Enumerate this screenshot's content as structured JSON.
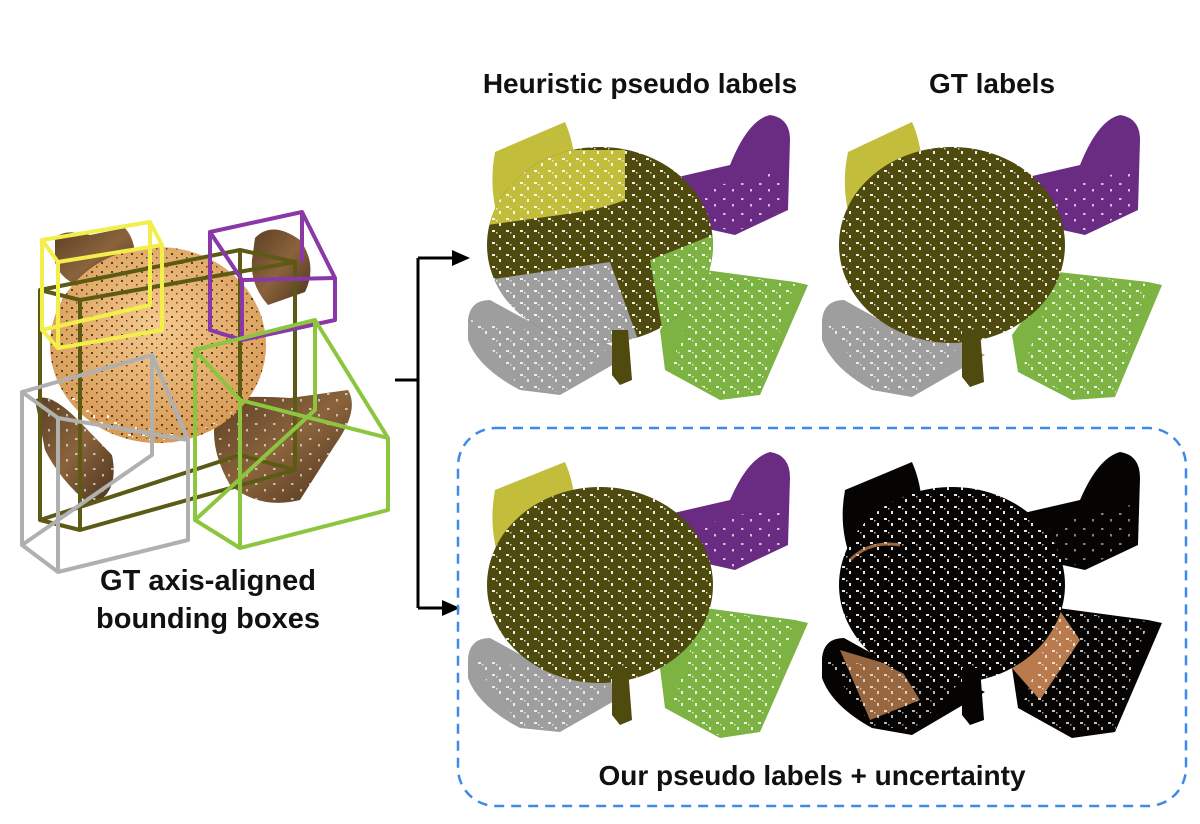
{
  "labels": {
    "gt_boxes_line1": "GT axis-aligned",
    "gt_boxes_line2": "bounding boxes",
    "heuristic": "Heuristic pseudo labels",
    "gt_labels": "GT labels",
    "ours": "Our pseudo labels + uncertainty"
  },
  "colors": {
    "table": "#4f4a0e",
    "chair_yellow": "#c2bd3a",
    "chair_purple": "#6a2c82",
    "chair_green": "#7cb342",
    "chair_gray": "#9e9e9e",
    "uncertainty_dark": "#050403",
    "uncertainty_hot": "#d9915a",
    "dashed_border": "#3d8ae8",
    "box_yellow": "#f2ee4a",
    "box_purple": "#8a37a8",
    "box_green": "#8cc63f",
    "box_gray": "#b0b0b0",
    "box_olive": "#5c5a14",
    "raw_wood": "#7a5532",
    "raw_table": "#e8b474"
  }
}
